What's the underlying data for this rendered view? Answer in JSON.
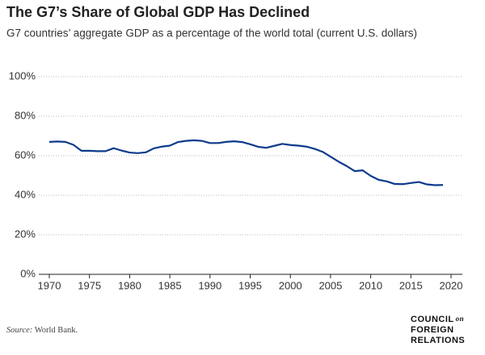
{
  "chart_data": {
    "type": "line",
    "title": "The G7’s Share of Global GDP Has Declined",
    "subtitle": "G7 countries’ aggregate GDP as a percentage of the world total (current U.S. dollars)",
    "x": [
      1970,
      1971,
      1972,
      1973,
      1974,
      1975,
      1976,
      1977,
      1978,
      1979,
      1980,
      1981,
      1982,
      1983,
      1984,
      1985,
      1986,
      1987,
      1988,
      1989,
      1990,
      1991,
      1992,
      1993,
      1994,
      1995,
      1996,
      1997,
      1998,
      1999,
      2000,
      2001,
      2002,
      2003,
      2004,
      2005,
      2006,
      2007,
      2008,
      2009,
      2010,
      2011,
      2012,
      2013,
      2014,
      2015,
      2016,
      2017,
      2018,
      2019
    ],
    "series": [
      {
        "name": "G7",
        "color": "#0d3b8c",
        "values": [
          67,
          67.2,
          67,
          65.5,
          62.5,
          62.5,
          62.3,
          62.3,
          63.8,
          62.6,
          61.6,
          61.3,
          61.7,
          63.7,
          64.6,
          65.1,
          66.9,
          67.5,
          67.8,
          67.5,
          66.4,
          66.4,
          67,
          67.3,
          66.9,
          65.8,
          64.5,
          64,
          65,
          66,
          65.4,
          65.1,
          64.6,
          63.5,
          62,
          59.5,
          57,
          54.8,
          52.2,
          52.6,
          49.8,
          47.8,
          47,
          45.7,
          45.6,
          46.2,
          46.7,
          45.5,
          45.1,
          45.2
        ]
      }
    ],
    "xlim": [
      1970,
      2020
    ],
    "xticks": [
      1970,
      1975,
      1980,
      1985,
      1990,
      1995,
      2000,
      2005,
      2010,
      2015,
      2020
    ],
    "ylim": [
      0,
      100
    ],
    "yticks": [
      {
        "value": 0,
        "label": "0%"
      },
      {
        "value": 20,
        "label": "20%"
      },
      {
        "value": 40,
        "label": "40%"
      },
      {
        "value": 60,
        "label": "60%"
      },
      {
        "value": 80,
        "label": "80%"
      },
      {
        "value": 100,
        "label": "100%"
      }
    ],
    "grid": true,
    "source_label": "Source:",
    "source": "World Bank.",
    "logo": [
      "COUNCIL",
      "on",
      "FOREIGN",
      "RELATIONS"
    ]
  }
}
